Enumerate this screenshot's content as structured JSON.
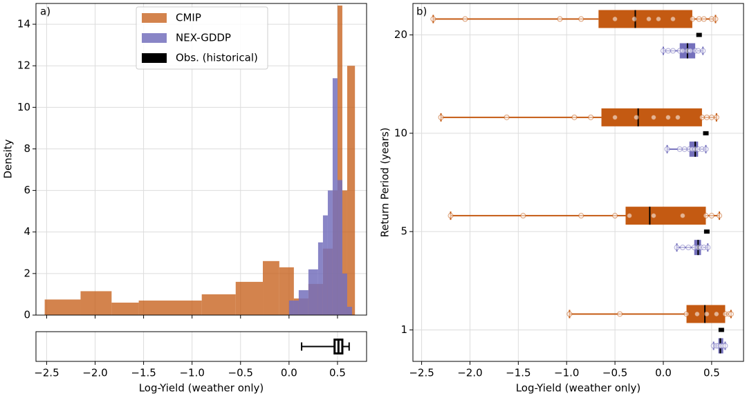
{
  "chart_data": [
    {
      "type": "histogram",
      "panel_label": "a)",
      "xlabel": "Log-Yield (weather only)",
      "ylabel": "Density",
      "xlim": [
        -2.61,
        0.8
      ],
      "ylim": [
        0,
        15
      ],
      "grid": true,
      "legend": "upper center",
      "xticks": [
        {
          "value": -2.5,
          "label": "−2.5"
        },
        {
          "value": -2,
          "label": "−2.0"
        },
        {
          "value": -1.5,
          "label": "−1.5"
        },
        {
          "value": -1,
          "label": "−1.0"
        },
        {
          "value": -0.5,
          "label": "−0.5"
        },
        {
          "value": 0,
          "label": "0.0"
        },
        0.5
      ],
      "yticks": [
        0,
        2,
        4,
        6,
        8,
        10,
        12,
        14
      ],
      "series": [
        {
          "name": "CMIP",
          "color": "#c45a12",
          "alpha": 0.75,
          "bins": [
            -2.52,
            -2.15,
            -1.83,
            -1.55,
            -0.9,
            -0.55,
            -0.27,
            -0.1,
            0.05,
            0.2,
            0.35,
            0.45,
            0.5,
            0.55,
            0.6,
            0.68
          ],
          "counts": [
            0.75,
            1.15,
            0.6,
            0.7,
            1.0,
            1.6,
            2.6,
            2.3,
            0.8,
            1.5,
            3.2,
            6.0,
            14.9,
            6.0,
            12.0
          ]
        },
        {
          "name": "NEX-GDDP",
          "color": "#7470bc",
          "alpha": 0.85,
          "bins": [
            0.0,
            0.1,
            0.2,
            0.3,
            0.35,
            0.4,
            0.45,
            0.5,
            0.55,
            0.6,
            0.65
          ],
          "counts": [
            0.7,
            1.2,
            2.2,
            3.5,
            4.8,
            6.0,
            11.4,
            6.5,
            2.0,
            0.4
          ]
        }
      ],
      "obs": {
        "name": "Obs. (historical)",
        "color": "#000000",
        "whislo": 0.13,
        "q1": 0.47,
        "med": 0.51,
        "q3": 0.55,
        "whishi": 0.62
      }
    },
    {
      "type": "boxplot",
      "panel_label": "b)",
      "xlabel": "Log-Yield (weather only)",
      "ylabel": "Return Period (years)",
      "xlim": [
        -2.59,
        0.83
      ],
      "grid": true,
      "xticks": [
        {
          "value": -2.5,
          "label": "−2.5"
        },
        {
          "value": -2,
          "label": "−2.0"
        },
        {
          "value": -1.5,
          "label": "−1.5"
        },
        {
          "value": -1,
          "label": "−1.0"
        },
        {
          "value": -0.5,
          "label": "−0.5"
        },
        {
          "value": 0,
          "label": "0.0"
        },
        0.5
      ],
      "categories": [
        "1",
        "5",
        "10",
        "20"
      ],
      "series": [
        {
          "color": "#c45a12",
          "boxes": [
            {
              "whislo": -0.97,
              "q1": 0.24,
              "med": 0.43,
              "q3": 0.64,
              "whishi": 0.7,
              "points": [
                -0.97,
                -0.45,
                0.24,
                0.35,
                0.45,
                0.55,
                0.64,
                0.68,
                0.7
              ]
            },
            {
              "whislo": -2.2,
              "q1": -0.39,
              "med": -0.14,
              "q3": 0.44,
              "whishi": 0.58,
              "points": [
                -2.2,
                -1.45,
                -0.85,
                -0.5,
                -0.35,
                -0.1,
                0.2,
                0.44,
                0.5,
                0.58
              ]
            },
            {
              "whislo": -2.3,
              "q1": -0.64,
              "med": -0.26,
              "q3": 0.4,
              "whishi": 0.55,
              "points": [
                -2.3,
                -1.62,
                -0.92,
                -0.75,
                -0.5,
                -0.28,
                -0.1,
                0.05,
                0.15,
                0.4,
                0.45,
                0.5,
                0.55
              ]
            },
            {
              "whislo": -2.38,
              "q1": -0.67,
              "med": -0.29,
              "q3": 0.3,
              "whishi": 0.54,
              "points": [
                -2.38,
                -2.05,
                -1.07,
                -0.85,
                -0.5,
                -0.3,
                -0.15,
                -0.05,
                0.1,
                0.3,
                0.37,
                0.42,
                0.5,
                0.54
              ]
            }
          ]
        },
        {
          "color": "#7470bc",
          "boxes": [
            {
              "whislo": 0.52,
              "q1": 0.57,
              "med": 0.59,
              "q3": 0.62,
              "whishi": 0.64,
              "points": [
                0.52,
                0.55,
                0.57,
                0.59,
                0.6,
                0.62,
                0.64
              ]
            },
            {
              "whislo": 0.14,
              "q1": 0.32,
              "med": 0.36,
              "q3": 0.39,
              "whishi": 0.46,
              "points": [
                0.14,
                0.2,
                0.26,
                0.32,
                0.36,
                0.39,
                0.42,
                0.46
              ]
            },
            {
              "whislo": 0.04,
              "q1": 0.27,
              "med": 0.33,
              "q3": 0.36,
              "whishi": 0.44,
              "points": [
                0.04,
                0.17,
                0.22,
                0.27,
                0.3,
                0.33,
                0.36,
                0.4,
                0.44
              ]
            },
            {
              "whislo": 0.0,
              "q1": 0.17,
              "med": 0.25,
              "q3": 0.33,
              "whishi": 0.41,
              "points": [
                0.0,
                0.05,
                0.1,
                0.17,
                0.2,
                0.25,
                0.28,
                0.33,
                0.36,
                0.41
              ]
            }
          ]
        }
      ],
      "obs": {
        "color": "#000000",
        "values": [
          0.6,
          0.45,
          0.44,
          0.37
        ]
      }
    }
  ]
}
